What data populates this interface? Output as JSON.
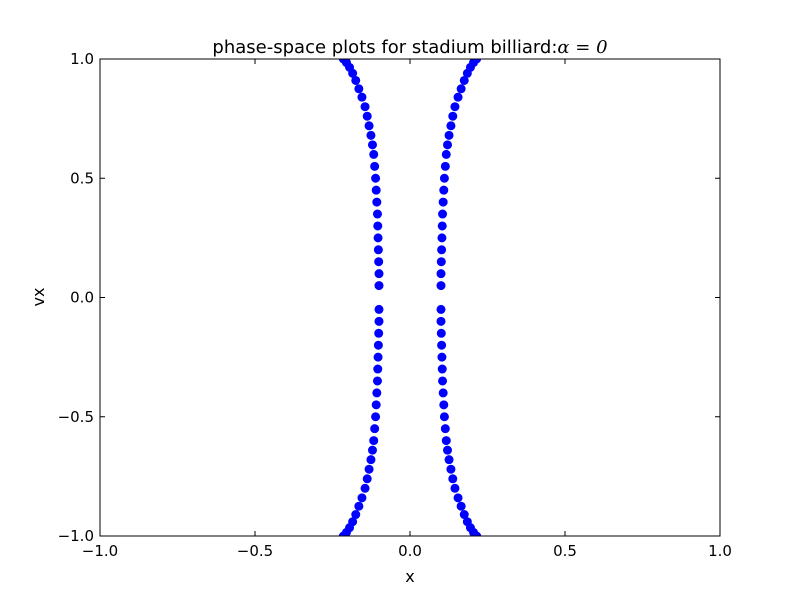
{
  "chart_data": {
    "type": "scatter",
    "title_prefix": "phase-space plots for stadium billiard:",
    "title_math": "α = 0",
    "xlabel": "x",
    "ylabel": "vx",
    "xlim": [
      -1.0,
      1.0
    ],
    "ylim": [
      -1.0,
      1.0
    ],
    "xticks": [
      -1.0,
      -0.5,
      0.0,
      0.5,
      1.0
    ],
    "yticks": [
      -1.0,
      -0.5,
      0.0,
      0.5,
      1.0
    ],
    "xtick_labels": [
      "−1.0",
      "−0.5",
      "0.0",
      "0.5",
      "1.0"
    ],
    "ytick_labels": [
      "−1.0",
      "−0.5",
      "0.0",
      "0.5",
      "1.0"
    ],
    "grid": false,
    "marker_color": "#0000ff",
    "series": [
      {
        "x": [
          -0.215,
          -0.205,
          -0.195,
          -0.185,
          -0.175,
          -0.165,
          -0.155,
          -0.145,
          -0.138,
          -0.132,
          -0.126,
          -0.121,
          -0.117,
          -0.114,
          -0.111,
          -0.109,
          -0.107,
          -0.105,
          -0.104,
          -0.103,
          -0.102,
          -0.101,
          -0.1,
          -0.1,
          -0.1,
          -0.1,
          -0.101,
          -0.102,
          -0.103,
          -0.104,
          -0.105,
          -0.107,
          -0.109,
          -0.111,
          -0.114,
          -0.117,
          -0.121,
          -0.126,
          -0.132,
          -0.138,
          -0.145,
          -0.155,
          -0.165,
          -0.175,
          -0.185,
          -0.195,
          -0.205,
          -0.215
        ],
        "y": [
          1.0,
          0.985,
          0.965,
          0.94,
          0.91,
          0.875,
          0.84,
          0.8,
          0.76,
          0.72,
          0.68,
          0.64,
          0.6,
          0.55,
          0.5,
          0.45,
          0.4,
          0.35,
          0.3,
          0.25,
          0.2,
          0.15,
          0.1,
          0.05,
          -0.05,
          -0.1,
          -0.15,
          -0.2,
          -0.25,
          -0.3,
          -0.35,
          -0.4,
          -0.45,
          -0.5,
          -0.55,
          -0.6,
          -0.64,
          -0.68,
          -0.72,
          -0.76,
          -0.8,
          -0.84,
          -0.875,
          -0.91,
          -0.94,
          -0.965,
          -0.985,
          -1.0
        ]
      },
      {
        "x": [
          0.215,
          0.205,
          0.195,
          0.185,
          0.175,
          0.165,
          0.155,
          0.145,
          0.138,
          0.132,
          0.126,
          0.121,
          0.117,
          0.114,
          0.111,
          0.109,
          0.107,
          0.105,
          0.104,
          0.103,
          0.102,
          0.101,
          0.1,
          0.1,
          0.1,
          0.1,
          0.101,
          0.102,
          0.103,
          0.104,
          0.105,
          0.107,
          0.109,
          0.111,
          0.114,
          0.117,
          0.121,
          0.126,
          0.132,
          0.138,
          0.145,
          0.155,
          0.165,
          0.175,
          0.185,
          0.195,
          0.205,
          0.215
        ],
        "y": [
          1.0,
          0.985,
          0.965,
          0.94,
          0.91,
          0.875,
          0.84,
          0.8,
          0.76,
          0.72,
          0.68,
          0.64,
          0.6,
          0.55,
          0.5,
          0.45,
          0.4,
          0.35,
          0.3,
          0.25,
          0.2,
          0.15,
          0.1,
          0.05,
          -0.05,
          -0.1,
          -0.15,
          -0.2,
          -0.25,
          -0.3,
          -0.35,
          -0.4,
          -0.45,
          -0.5,
          -0.55,
          -0.6,
          -0.64,
          -0.68,
          -0.72,
          -0.76,
          -0.8,
          -0.84,
          -0.875,
          -0.91,
          -0.94,
          -0.965,
          -0.985,
          -1.0
        ]
      }
    ]
  }
}
